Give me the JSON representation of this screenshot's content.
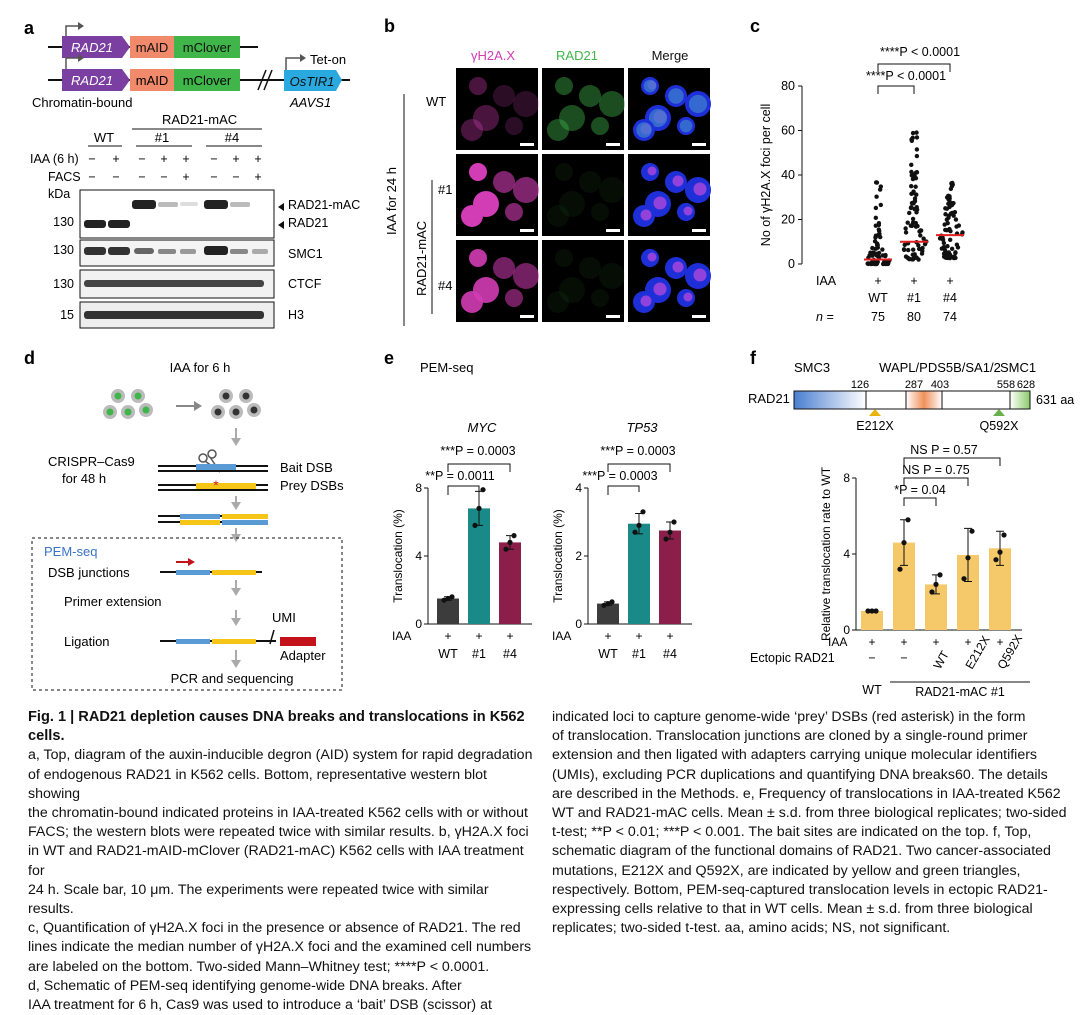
{
  "panels": {
    "a": "a",
    "b": "b",
    "c": "c",
    "d": "d",
    "e": "e",
    "f": "f"
  },
  "colors": {
    "purple": "#7a3fa0",
    "salmon": "#f08a6a",
    "green": "#3fb54a",
    "cyan": "#29a9e0",
    "teal": "#1a8a88",
    "maroon": "#8c1f4a",
    "dark": "#3c3c3c",
    "gold": "#f5c86a",
    "magenta": "#d23cb4",
    "red_adapter": "#c4121a",
    "blue_bait": "#5b9bd5",
    "yellow_prey": "#f5c518"
  },
  "panel_a": {
    "construct1": {
      "rad21": "RAD21",
      "maid": "mAID",
      "mclover": "mClover"
    },
    "construct2": {
      "rad21": "RAD21",
      "maid": "mAID",
      "mclover": "mClover",
      "tet_on": "Tet-on",
      "ostir1": "OsTIR1",
      "aavs1": "AAVS1"
    },
    "chromatin_bound": "Chromatin-bound",
    "rad21_mac": "RAD21-mAC",
    "groups": {
      "wt": "WT",
      "c1": "#1",
      "c4": "#4"
    },
    "iaa_label": "IAA (6 h)",
    "facs_label": "FACS",
    "iaa_signs": [
      "−",
      "+",
      "−",
      "+",
      "+",
      "−",
      "+",
      "+"
    ],
    "facs_signs": [
      "−",
      "−",
      "−",
      "−",
      "+",
      "−",
      "−",
      "+"
    ],
    "kda": "kDa",
    "blots": [
      {
        "marker": "130",
        "labels": [
          "RAD21-mAC",
          "RAD21"
        ]
      },
      {
        "marker": "130",
        "labels": [
          "SMC1"
        ]
      },
      {
        "marker": "130",
        "labels": [
          "CTCF"
        ]
      },
      {
        "marker": "15",
        "labels": [
          "H3"
        ]
      }
    ]
  },
  "panel_b": {
    "cols": [
      "γH2A.X",
      "RAD21",
      "Merge"
    ],
    "side": "IAA for 24 h",
    "rows": [
      "WT",
      "#1",
      "#4"
    ],
    "rad21_mac": "RAD21-mAC"
  },
  "chart_data": [
    {
      "panel": "c",
      "type": "scatter",
      "ylabel": "No of γH2A.X foci per cell",
      "yticks": [
        0,
        20,
        40,
        60,
        80
      ],
      "ylim": [
        0,
        80
      ],
      "iaa_label": "IAA",
      "iaa": [
        "+",
        "+",
        "+"
      ],
      "categories": [
        "WT",
        "#1",
        "#4"
      ],
      "n_label": "n =",
      "n": [
        "75",
        "80",
        "74"
      ],
      "medians": [
        2,
        10,
        13
      ],
      "max_values": [
        42,
        60,
        38
      ],
      "brackets": [
        "****P < 0.0001",
        "****P < 0.0001"
      ]
    },
    {
      "panel": "e1",
      "type": "bar",
      "title": "MYC",
      "header": "PEM-seq",
      "ylabel": "Translocation (%)",
      "yticks": [
        0,
        4,
        8
      ],
      "ylim": [
        0,
        8
      ],
      "iaa_label": "IAA",
      "iaa": [
        "+",
        "+",
        "+"
      ],
      "categories": [
        "WT",
        "#1",
        "#4"
      ],
      "values": [
        1.5,
        6.8,
        4.8
      ],
      "errors": [
        0.1,
        1.0,
        0.4
      ],
      "points": [
        [
          1.4,
          1.5,
          1.6
        ],
        [
          5.8,
          6.8,
          7.9
        ],
        [
          4.4,
          4.8,
          5.2
        ]
      ],
      "brackets": [
        "***P = 0.0003",
        "**P = 0.0011"
      ]
    },
    {
      "panel": "e2",
      "type": "bar",
      "title": "TP53",
      "ylabel": "Translocation (%)",
      "yticks": [
        0,
        2,
        4
      ],
      "ylim": [
        0,
        4
      ],
      "iaa_label": "IAA",
      "iaa": [
        "+",
        "+",
        "+"
      ],
      "categories": [
        "WT",
        "#1",
        "#4"
      ],
      "values": [
        0.6,
        2.95,
        2.75
      ],
      "errors": [
        0.05,
        0.3,
        0.25
      ],
      "points": [
        [
          0.55,
          0.6,
          0.65
        ],
        [
          2.7,
          2.9,
          3.3
        ],
        [
          2.5,
          2.7,
          3.0
        ]
      ],
      "brackets": [
        "***P = 0.0003",
        "***P = 0.0003"
      ]
    },
    {
      "panel": "f",
      "type": "bar",
      "ylabel": "Relative translocation rate to WT",
      "yticks": [
        0,
        4,
        8
      ],
      "ylim": [
        0,
        8
      ],
      "iaa_label": "IAA",
      "iaa": [
        "+",
        "+",
        "+",
        "+",
        "+"
      ],
      "ectopic_label": "Ectopic RAD21",
      "ectopic": [
        "−",
        "−",
        "WT",
        "E212X",
        "Q592X"
      ],
      "group_wt": "WT",
      "group_mac": "RAD21-mAC #1",
      "values": [
        1.0,
        4.6,
        2.4,
        3.95,
        4.3
      ],
      "errors": [
        0.05,
        1.2,
        0.5,
        1.4,
        0.9
      ],
      "points": [
        [
          1.0,
          1.0,
          1.0
        ],
        [
          3.2,
          4.6,
          5.8
        ],
        [
          2.0,
          2.4,
          2.9
        ],
        [
          2.7,
          3.8,
          5.2
        ],
        [
          3.7,
          4.1,
          5.0
        ]
      ],
      "brackets": [
        "NS P = 0.57",
        "NS P = 0.75",
        "*P = 0.04"
      ]
    }
  ],
  "panel_d": {
    "iaa": "IAA for 6 h",
    "crispr": "CRISPR–Cas9",
    "for48": "for 48 h",
    "bait": "Bait DSB",
    "prey": "Prey DSBs",
    "pem": "PEM-seq",
    "junctions": "DSB junctions",
    "primer": "Primer extension",
    "ligation": "Ligation",
    "umi": "UMI",
    "adapter": "Adapter",
    "pcr": "PCR and sequencing"
  },
  "panel_f_domain": {
    "smc3": "SMC3",
    "wapl": "WAPL/PDS5B/SA1/2",
    "smc1": "SMC1",
    "rad21": "RAD21",
    "n126": "126",
    "n287": "287",
    "n403": "403",
    "n558": "558",
    "n628": "628",
    "len": "631 aa",
    "e212x": "E212X",
    "q592x": "Q592X"
  },
  "caption": {
    "title": "Fig. 1 | RAD21 depletion causes DNA breaks and translocations in K562 cells.",
    "left": [
      "a, Top, diagram of the auxin-inducible degron (AID) system for rapid degradation",
      "of endogenous RAD21 in K562 cells. Bottom, representative western blot showing",
      "the chromatin-bound indicated proteins in IAA-treated K562 cells with or without",
      "FACS; the western blots were repeated twice with similar results. b, γH2A.X foci",
      "in WT and RAD21-mAID-mClover (RAD21-mAC) K562 cells with IAA treatment for",
      "24 h. Scale bar, 10 μm. The experiments were repeated twice with similar results.",
      "c, Quantification of γH2A.X foci in the presence or absence of RAD21. The red",
      "lines indicate the median number of γH2A.X foci and the examined cell numbers",
      "are labeled on the bottom. Two-sided Mann–Whitney test; ****P < 0.0001.",
      "d, Schematic of PEM-seq identifying genome-wide DNA breaks. After",
      "IAA treatment for 6 h, Cas9 was used to introduce a ‘bait’ DSB (scissor) at"
    ],
    "right": [
      "indicated loci to capture genome-wide ‘prey’ DSBs (red asterisk) in the form",
      "of translocation. Translocation junctions are cloned by a single-round primer",
      "extension and then ligated with adapters carrying unique molecular identifiers",
      "(UMIs), excluding PCR duplications and quantifying DNA breaks60. The details",
      "are described in the Methods. e, Frequency of translocations in IAA-treated K562",
      "WT and RAD21-mAC cells. Mean ± s.d. from three biological replicates; two-sided",
      "t-test; **P < 0.01; ***P < 0.001. The bait sites are indicated on the top. f, Top,",
      "schematic diagram of the functional domains of RAD21. Two cancer-associated",
      "mutations, E212X and Q592X, are indicated by yellow and green triangles,",
      "respectively. Bottom, PEM-seq-captured translocation levels in ectopic RAD21-",
      "expressing cells relative to that in WT cells. Mean ± s.d. from three biological",
      "replicates; two-sided t-test. aa, amino acids; NS, not significant."
    ]
  }
}
